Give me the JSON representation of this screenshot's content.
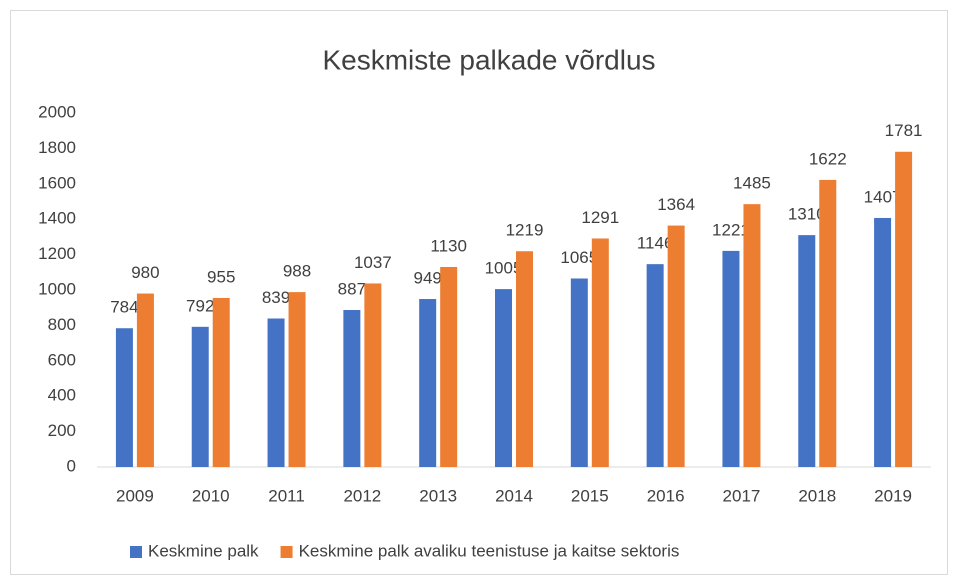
{
  "chart_data": {
    "type": "bar",
    "title": "Keskmiste palkade võrdlus",
    "categories": [
      "2009",
      "2010",
      "2011",
      "2012",
      "2013",
      "2014",
      "2015",
      "2016",
      "2017",
      "2018",
      "2019"
    ],
    "series": [
      {
        "name": "Keskmine palk",
        "color": "#4472c4",
        "values": [
          784,
          792,
          839,
          887,
          949,
          1005,
          1065,
          1146,
          1221,
          1310,
          1407
        ]
      },
      {
        "name": "Keskmine palk avaliku teenistuse ja kaitse sektoris",
        "color": "#ed7d31",
        "values": [
          980,
          955,
          988,
          1037,
          1130,
          1219,
          1291,
          1364,
          1485,
          1622,
          1781
        ]
      }
    ],
    "ylim": [
      0,
      2000
    ],
    "yticks": [
      0,
      200,
      400,
      600,
      800,
      1000,
      1200,
      1400,
      1600,
      1800,
      2000
    ],
    "grid": false,
    "legend": "bottom"
  }
}
